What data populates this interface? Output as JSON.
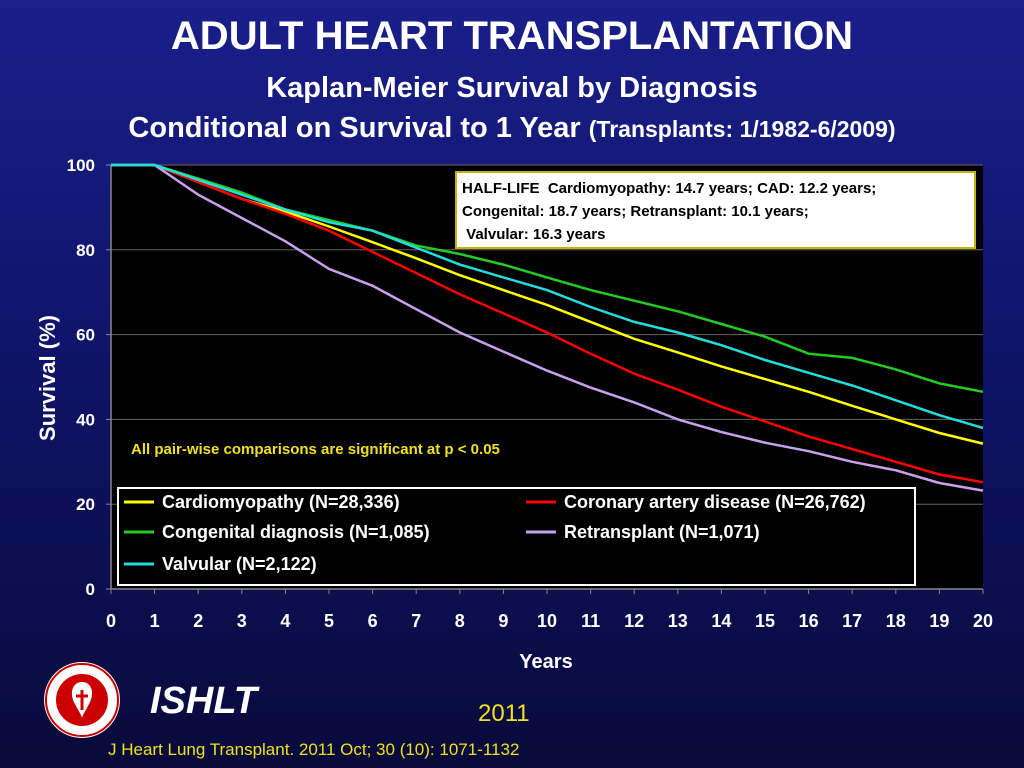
{
  "header": {
    "title": "ADULT HEART TRANSPLANTATION",
    "subtitle": "Kaplan-Meier Survival by Diagnosis",
    "subtitle2_main": "Conditional on Survival to 1 Year",
    "subtitle2_paren": "(Transplants: 1/1982-6/2009)"
  },
  "chart_data": {
    "type": "line",
    "xlabel": "Years",
    "ylabel": "Survival (%)",
    "xlim": [
      0,
      20
    ],
    "ylim": [
      0,
      100
    ],
    "x_ticks": [
      "0",
      "1",
      "2",
      "3",
      "4",
      "5",
      "6",
      "7",
      "8",
      "9",
      "10",
      "11",
      "12",
      "13",
      "14",
      "15",
      "16",
      "17",
      "18",
      "19",
      "20"
    ],
    "y_ticks": [
      "0",
      "20",
      "40",
      "60",
      "80",
      "100"
    ],
    "grid": true,
    "x": [
      0,
      1,
      2,
      3,
      4,
      5,
      6,
      7,
      8,
      9,
      10,
      11,
      12,
      13,
      14,
      15,
      16,
      17,
      18,
      19,
      20
    ],
    "series": [
      {
        "name": "Cardiomyopathy (N=28,336)",
        "color": "#ffff00",
        "values": [
          100,
          100,
          96,
          92,
          89,
          85.5,
          81.8,
          78,
          74,
          70.5,
          67,
          63,
          59,
          55.8,
          52.5,
          49.5,
          46.5,
          43.2,
          40,
          36.8,
          34.3
        ]
      },
      {
        "name": "Coronary artery disease (N=26,762)",
        "color": "#ff0000",
        "values": [
          100,
          100,
          96,
          92,
          88.5,
          84.5,
          79.5,
          74.5,
          69.5,
          65,
          60.5,
          55.5,
          50.8,
          47,
          43,
          39.5,
          36,
          33,
          30,
          27,
          25.2
        ]
      },
      {
        "name": "Congenital diagnosis (N=1,085)",
        "color": "#22cc22",
        "values": [
          100,
          100,
          96.8,
          93.5,
          89.5,
          87,
          84.5,
          81,
          79,
          76.5,
          73.5,
          70.5,
          68,
          65.5,
          62.5,
          59.5,
          55.5,
          54.5,
          51.8,
          48.5,
          46.5
        ]
      },
      {
        "name": "Retransplant (N=1,071)",
        "color": "#c9a0ee",
        "values": [
          100,
          100,
          93,
          87.5,
          82,
          75.5,
          71.5,
          66,
          60.5,
          56,
          51.5,
          47.5,
          44,
          40,
          37,
          34.5,
          32.5,
          30,
          28,
          25,
          23.2
        ]
      },
      {
        "name": "Valvular (N=2,122)",
        "color": "#22dddd",
        "values": [
          100,
          100,
          96.5,
          93,
          89.5,
          86.5,
          84.5,
          80.5,
          76.5,
          73.5,
          70.5,
          66.5,
          63,
          60.5,
          57.5,
          54,
          51,
          48,
          44.5,
          41,
          38
        ]
      }
    ],
    "legend_placement": "bottom-left",
    "halflife_box": [
      "HALF-LIFE  Cardiomyopathy: 14.7 years; CAD: 12.2 years;",
      "Congenital: 18.7 years; Retransplant: 10.1 years;",
      " Valvular: 16.3 years"
    ],
    "annotation": "All pair-wise comparisons are significant at p < 0.05"
  },
  "footer": {
    "org": "ISHLT",
    "year": "2011",
    "reference": "J Heart Lung Transplant. 2011 Oct; 30 (10): 1071-1132",
    "logo_text": "INTERNATIONAL SOCIETY FOR HEART & LUNG TRANSPLANTATION"
  },
  "colors": {
    "plot_bg": "#000000",
    "accent_yellow": "#f0e020",
    "box_border": "#c8b400"
  }
}
